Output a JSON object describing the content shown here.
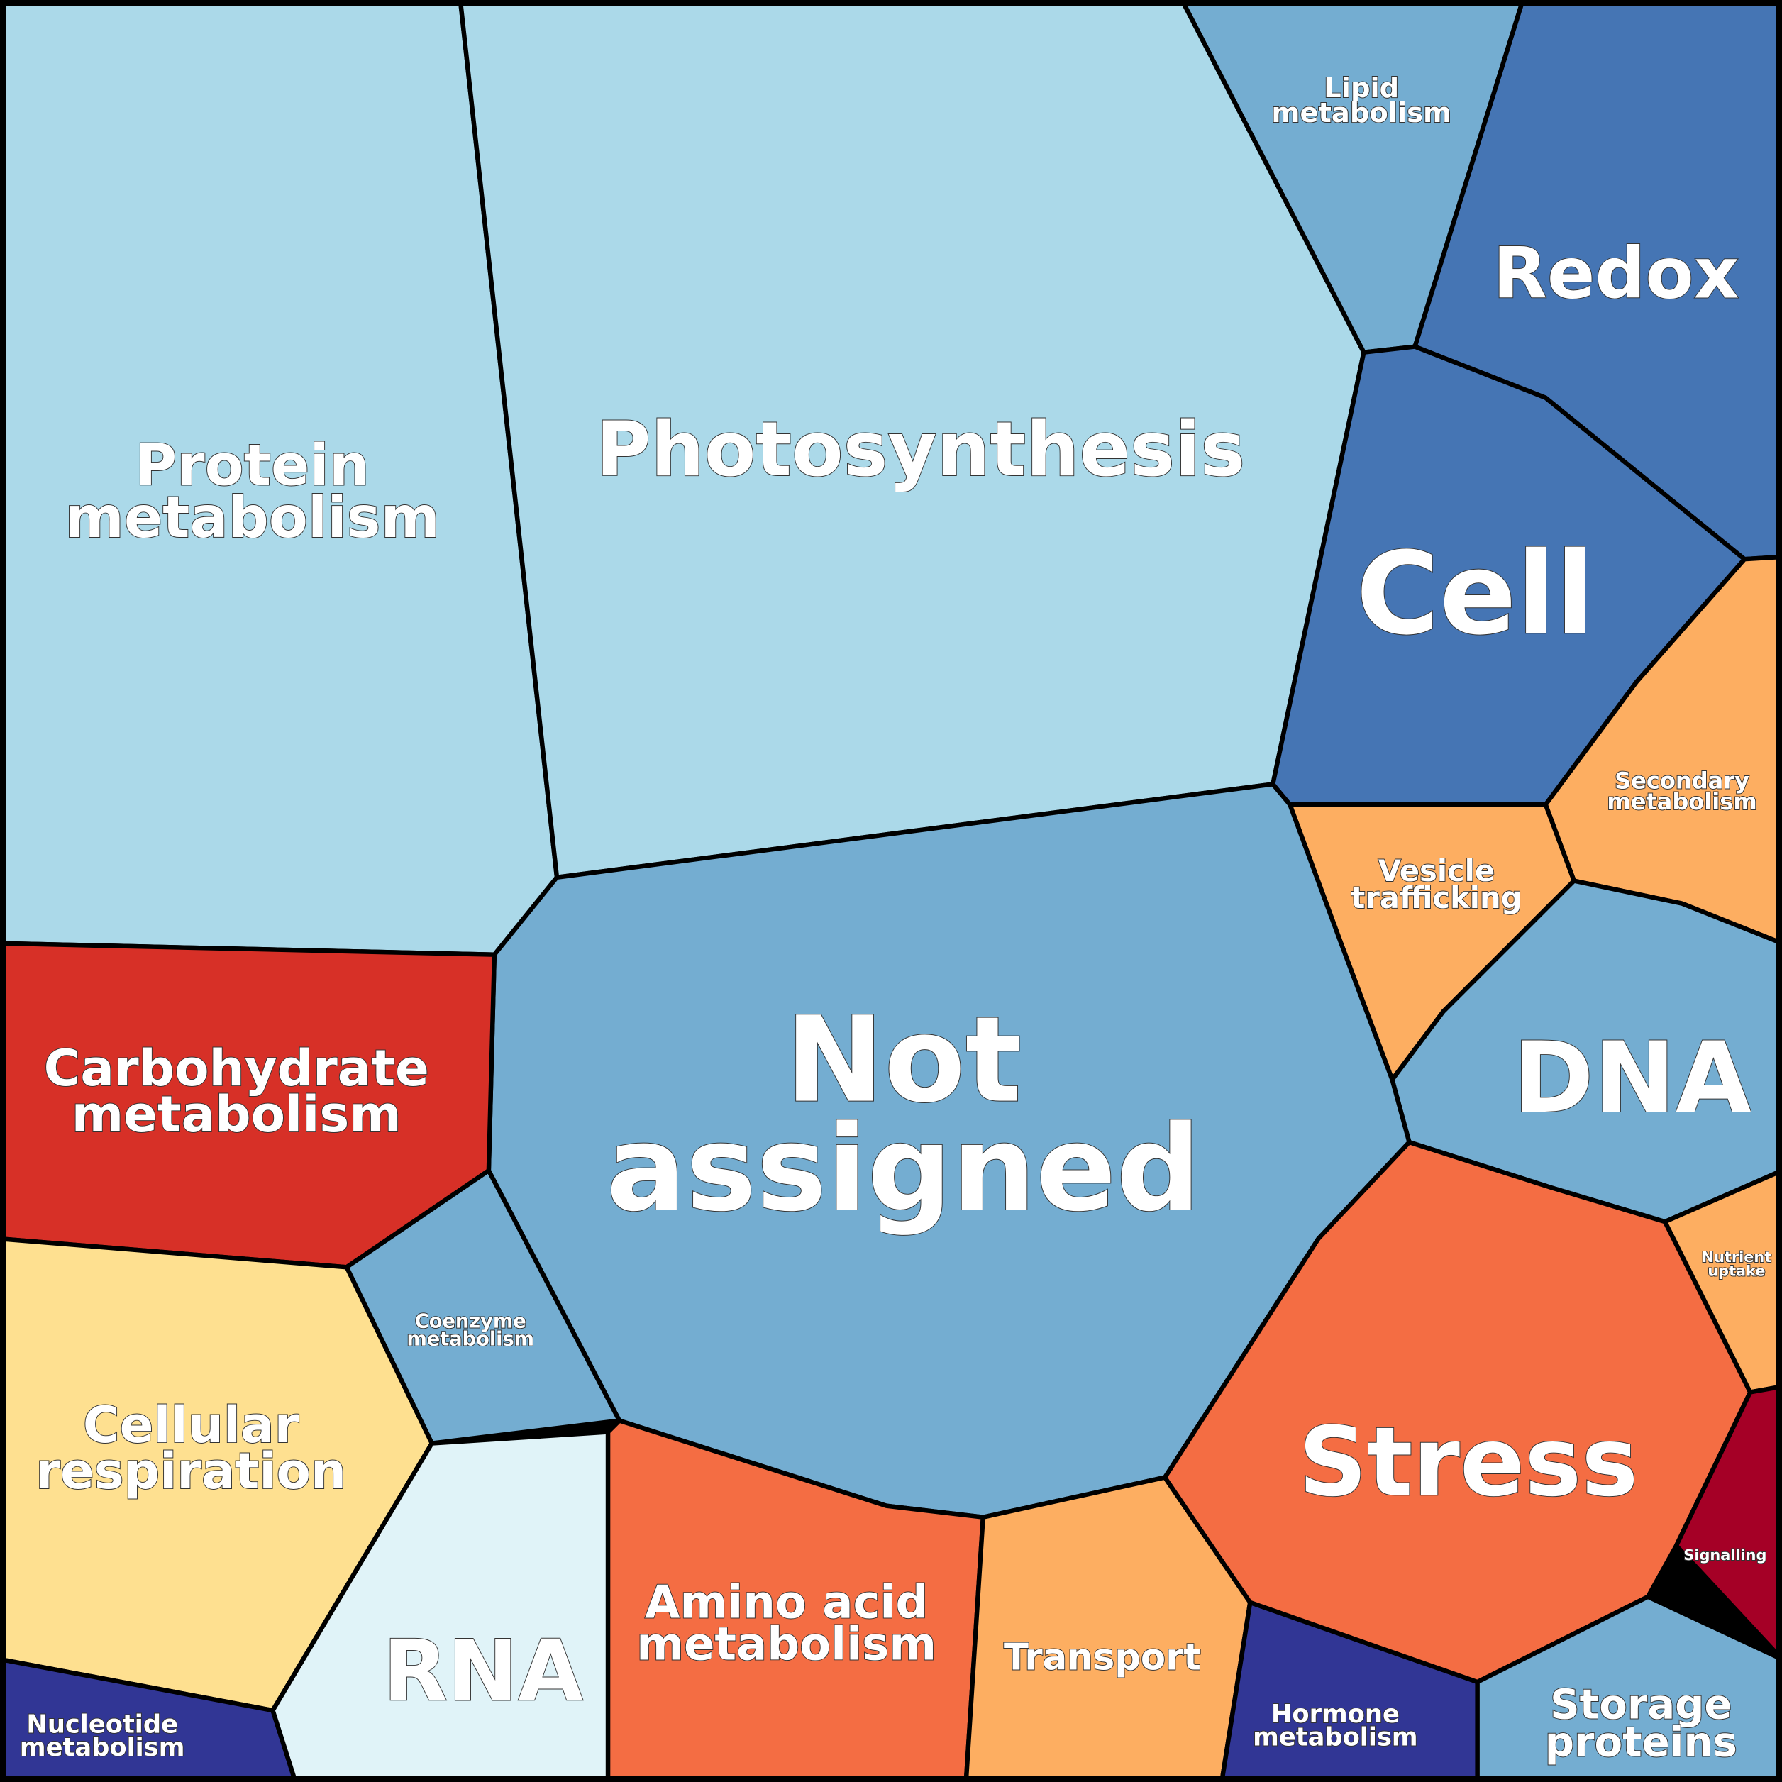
{
  "chart_data": {
    "type": "voronoi-treemap",
    "title": "",
    "categories": [
      {
        "lines": [
          "Protein",
          "metabolism"
        ],
        "color": "#abd9e9"
      },
      {
        "lines": [
          "Photosynthesis"
        ],
        "color": "#abd9e9"
      },
      {
        "lines": [
          "Lipid",
          "metabolism"
        ],
        "color": "#74add1"
      },
      {
        "lines": [
          "Redox"
        ],
        "color": "#4575b4"
      },
      {
        "lines": [
          "Cell"
        ],
        "color": "#4575b4"
      },
      {
        "lines": [
          "Secondary",
          "metabolism"
        ],
        "color": "#fdae61"
      },
      {
        "lines": [
          "Vesicle",
          "trafficking"
        ],
        "color": "#fdae61"
      },
      {
        "lines": [
          "DNA"
        ],
        "color": "#74add1"
      },
      {
        "lines": [
          "Not",
          "assigned"
        ],
        "color": "#74add1"
      },
      {
        "lines": [
          "Carbohydrate",
          "metabolism"
        ],
        "color": "#d73027"
      },
      {
        "lines": [
          "Coenzyme",
          "metabolism"
        ],
        "color": "#74add1"
      },
      {
        "lines": [
          "Cellular",
          "respiration"
        ],
        "color": "#fee090"
      },
      {
        "lines": [
          "Nucleotide",
          "metabolism"
        ],
        "color": "#313695"
      },
      {
        "lines": [
          "RNA"
        ],
        "color": "#e0f3f8"
      },
      {
        "lines": [
          "Amino acid",
          "metabolism"
        ],
        "color": "#f46d43"
      },
      {
        "lines": [
          "Transport"
        ],
        "color": "#fdae61"
      },
      {
        "lines": [
          "Hormone",
          "metabolism"
        ],
        "color": "#313695"
      },
      {
        "lines": [
          "Stress"
        ],
        "color": "#f46d43"
      },
      {
        "lines": [
          "Nutrient",
          "uptake"
        ],
        "color": "#fdae61"
      },
      {
        "lines": [
          "Signalling"
        ],
        "color": "#a50026"
      },
      {
        "lines": [
          "Storage",
          "proteins"
        ],
        "color": "#74add1"
      }
    ]
  }
}
